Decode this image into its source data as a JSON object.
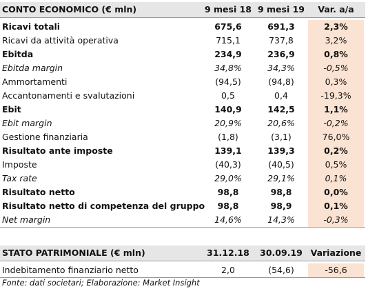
{
  "income_statement": {
    "header": [
      "CONTO ECONOMICO (€ mln)",
      "9 mesi 18",
      "9 mesi 19",
      "Var. a/a"
    ],
    "rows": [
      [
        "Ricavi totali",
        "675,6",
        "691,3",
        "2,3%"
      ],
      [
        "Ricavi da attività operativa",
        "715,1",
        "737,8",
        "3,2%"
      ],
      [
        "Ebitda",
        "234,9",
        "236,9",
        "0,8%"
      ],
      [
        "Ebitda margin",
        "34,8%",
        "34,3%",
        "-0,5%"
      ],
      [
        "Ammortamenti",
        "(94,5)",
        "(94,8)",
        "0,3%"
      ],
      [
        "Accantonamenti e svalutazioni",
        "0,5",
        "0,4",
        "-19,3%"
      ],
      [
        "Ebit",
        "140,9",
        "142,5",
        "1,1%"
      ],
      [
        "Ebit margin",
        "20,9%",
        "20,6%",
        "-0,2%"
      ],
      [
        "Gestione finanziaria",
        "(1,8)",
        "(3,1)",
        "76,0%"
      ],
      [
        "Risultato ante imposte",
        "139,1",
        "139,3",
        "0,2%"
      ],
      [
        "Imposte",
        "(40,3)",
        "(40,5)",
        "0,5%"
      ],
      [
        "Tax rate",
        "29,0%",
        "29,1%",
        "0,1%"
      ],
      [
        "Risultato netto",
        "98,8",
        "98,8",
        "0,0%"
      ],
      [
        "Risultato netto di competenza del gruppo",
        "98,8",
        "98,9",
        "0,1%"
      ],
      [
        "Net margin",
        "14,6%",
        "14,3%",
        "-0,3%"
      ]
    ]
  },
  "balance_sheet": {
    "header": [
      "STATO PATRIMONIALE (€ mln)",
      "31.12.18",
      "30.09.19",
      "Variazione"
    ],
    "rows": [
      [
        "Indebitamento finanziario netto",
        "2,0",
        "(54,6)",
        "-56,6"
      ]
    ]
  },
  "footnote": "Fonte: dati societari; Elaborazione: Market Insight"
}
